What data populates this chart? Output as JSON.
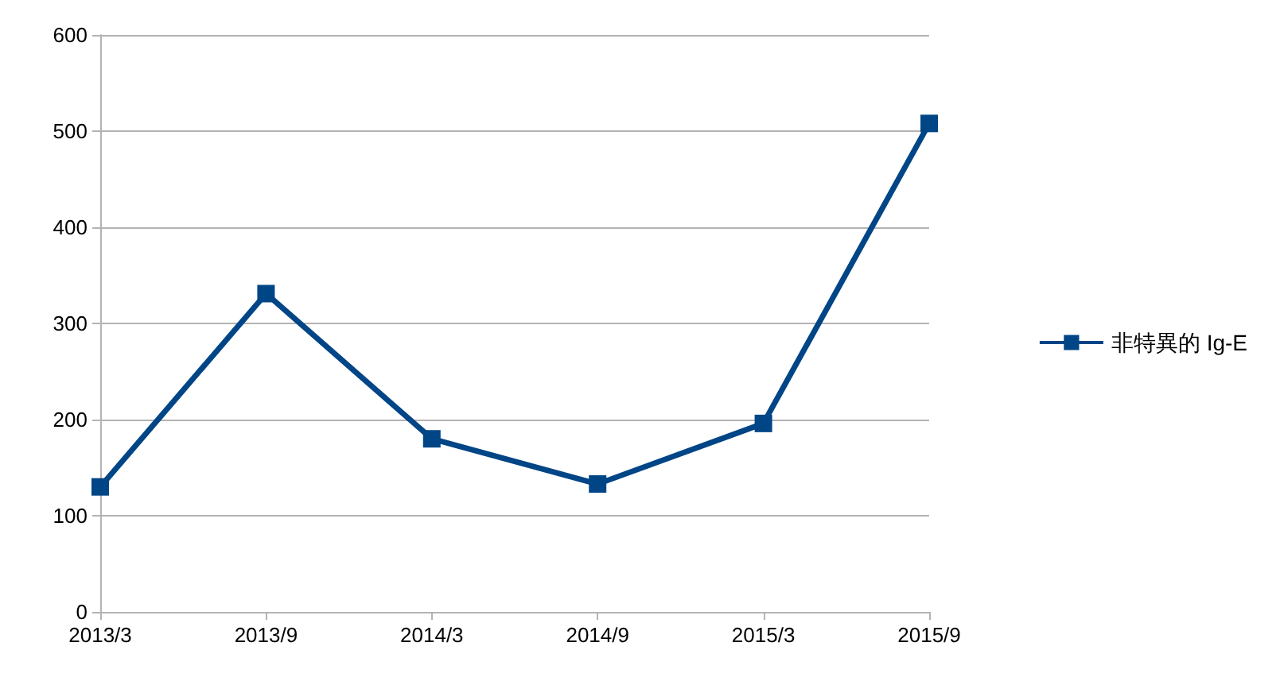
{
  "chart_data": {
    "type": "line",
    "categories": [
      "2013/3",
      "2013/9",
      "2014/3",
      "2014/9",
      "2015/3",
      "2015/9"
    ],
    "series": [
      {
        "name": "非特異的 Ig-E",
        "color": "#004586",
        "values": [
          130,
          331,
          180,
          133,
          196,
          508
        ]
      }
    ],
    "ylim": [
      0,
      600
    ],
    "yticks": [
      0,
      100,
      200,
      300,
      400,
      500,
      600
    ],
    "grid": "y",
    "legend": "right",
    "marker": "square",
    "line_style": "solid"
  }
}
